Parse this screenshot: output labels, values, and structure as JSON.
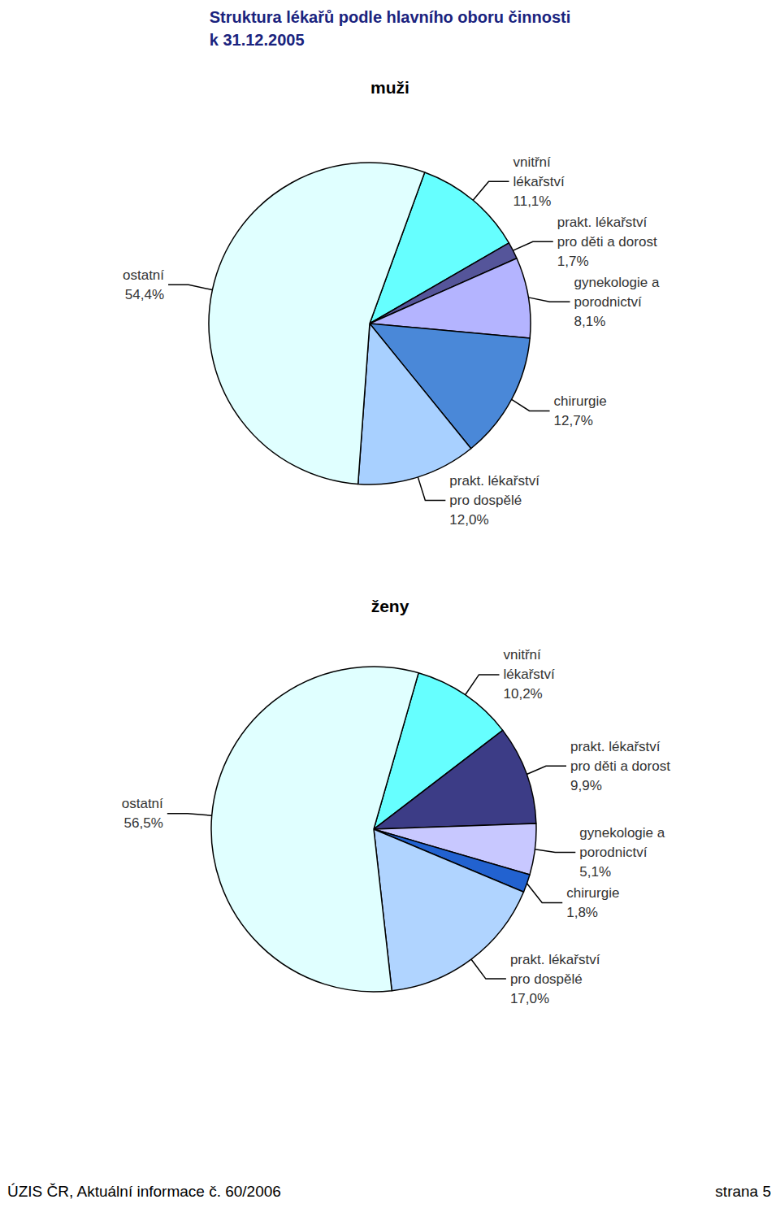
{
  "title": "Struktura lékařů podle hlavního oboru činnosti\nk 31.12.2005",
  "footer": {
    "left": "ÚZIS ČR, Aktuální informace č. 60/2006",
    "right": "strana 5"
  },
  "chart_data": [
    {
      "type": "pie",
      "title": "muži",
      "categories": [
        "vnitřní lékařství",
        "prakt. lékařství pro děti a dorost",
        "gynekologie a porodnictví",
        "chirurgie",
        "prakt. lékařství pro dospělé",
        "ostatní"
      ],
      "values": [
        11.1,
        1.7,
        8.1,
        12.7,
        12.0,
        54.4
      ],
      "value_labels": [
        "11,1%",
        "1,7%",
        "8,1%",
        "12,7%",
        "12,0%",
        "54,4%"
      ],
      "colors": [
        "#66ffff",
        "#55559a",
        "#b4b4ff",
        "#4a88d8",
        "#a8d0ff",
        "#e0ffff"
      ],
      "data_labels": true
    },
    {
      "type": "pie",
      "title": "ženy",
      "categories": [
        "vnitřní lékařství",
        "prakt. lékařství pro děti a dorost",
        "gynekologie a porodnictví",
        "chirurgie",
        "prakt. lékařství pro dospělé",
        "ostatní"
      ],
      "values": [
        10.2,
        9.9,
        5.1,
        1.8,
        17.0,
        56.5
      ],
      "value_labels": [
        "10,2%",
        "9,9%",
        "5,1%",
        "1,8%",
        "17,0%",
        "56,5%"
      ],
      "colors": [
        "#66ffff",
        "#3c3c86",
        "#c8c8ff",
        "#2262d0",
        "#b0d4ff",
        "#e0ffff"
      ],
      "data_labels": true
    }
  ]
}
